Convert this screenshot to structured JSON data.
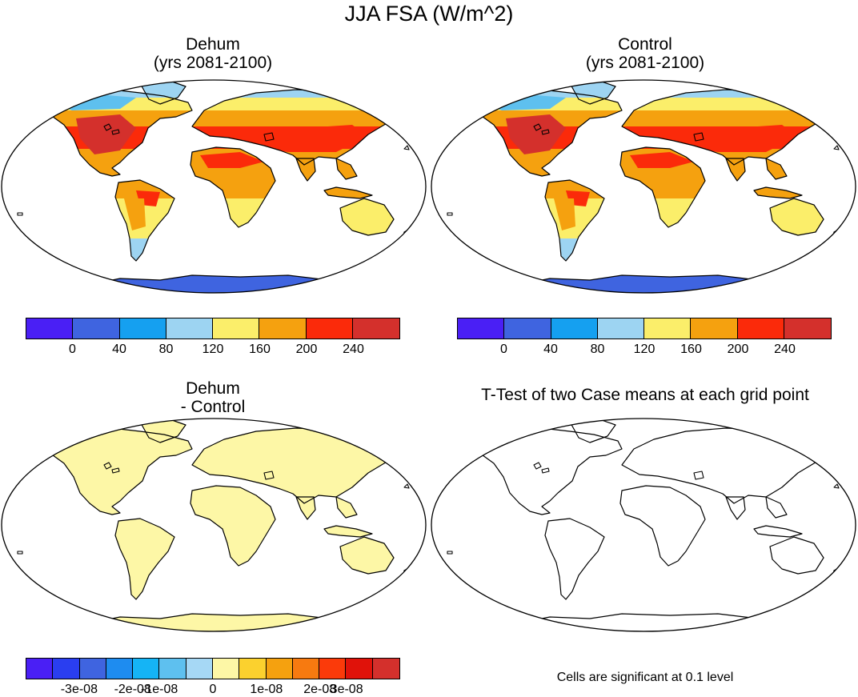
{
  "title": "JJA FSA (W/m^2)",
  "panels": [
    {
      "title_line1": "Dehum",
      "title_line2": "(yrs 2081-2100)"
    },
    {
      "title_line1": "Control",
      "title_line2": "(yrs 2081-2100)"
    },
    {
      "title_line1": "Dehum",
      "title_line2": "- Control"
    },
    {
      "title_line1": "T-Test of two Case means at each grid point"
    }
  ],
  "colorbar_abs": {
    "colors": [
      "#4a1ff5",
      "#3f64e0",
      "#15a0f0",
      "#9dd4f2",
      "#fbee6a",
      "#f5a10f",
      "#fb2a0a",
      "#d4302c"
    ],
    "labels": [
      "0",
      "40",
      "80",
      "120",
      "160",
      "200",
      "240"
    ]
  },
  "colorbar_diff": {
    "colors": [
      "#4a1ff5",
      "#2a3ef0",
      "#3f64e0",
      "#1e8cf0",
      "#15b4f5",
      "#5ec0ef",
      "#a6d8f5",
      "#fdf7a6",
      "#fbd12e",
      "#f5a10f",
      "#f77a10",
      "#fb3a0a",
      "#e0120a",
      "#d4302c"
    ],
    "labels": [
      "-3e-08",
      "-2e-08",
      "-1e-08",
      "0",
      "1e-08",
      "2e-08",
      "3e-08"
    ]
  },
  "map_colors": {
    "ocean": "#ffffff",
    "antarctica": "#3f64e0",
    "arctic": "#5ec0ef",
    "hot": "#fb2a0a",
    "veryhot": "#d4302c",
    "warm": "#f5a10f",
    "mild": "#fbee6a",
    "cool": "#9dd4f2",
    "diff": "#fdf7a6",
    "coast": "#000000"
  },
  "ttest_note": "Cells are significant at 0.1 level"
}
